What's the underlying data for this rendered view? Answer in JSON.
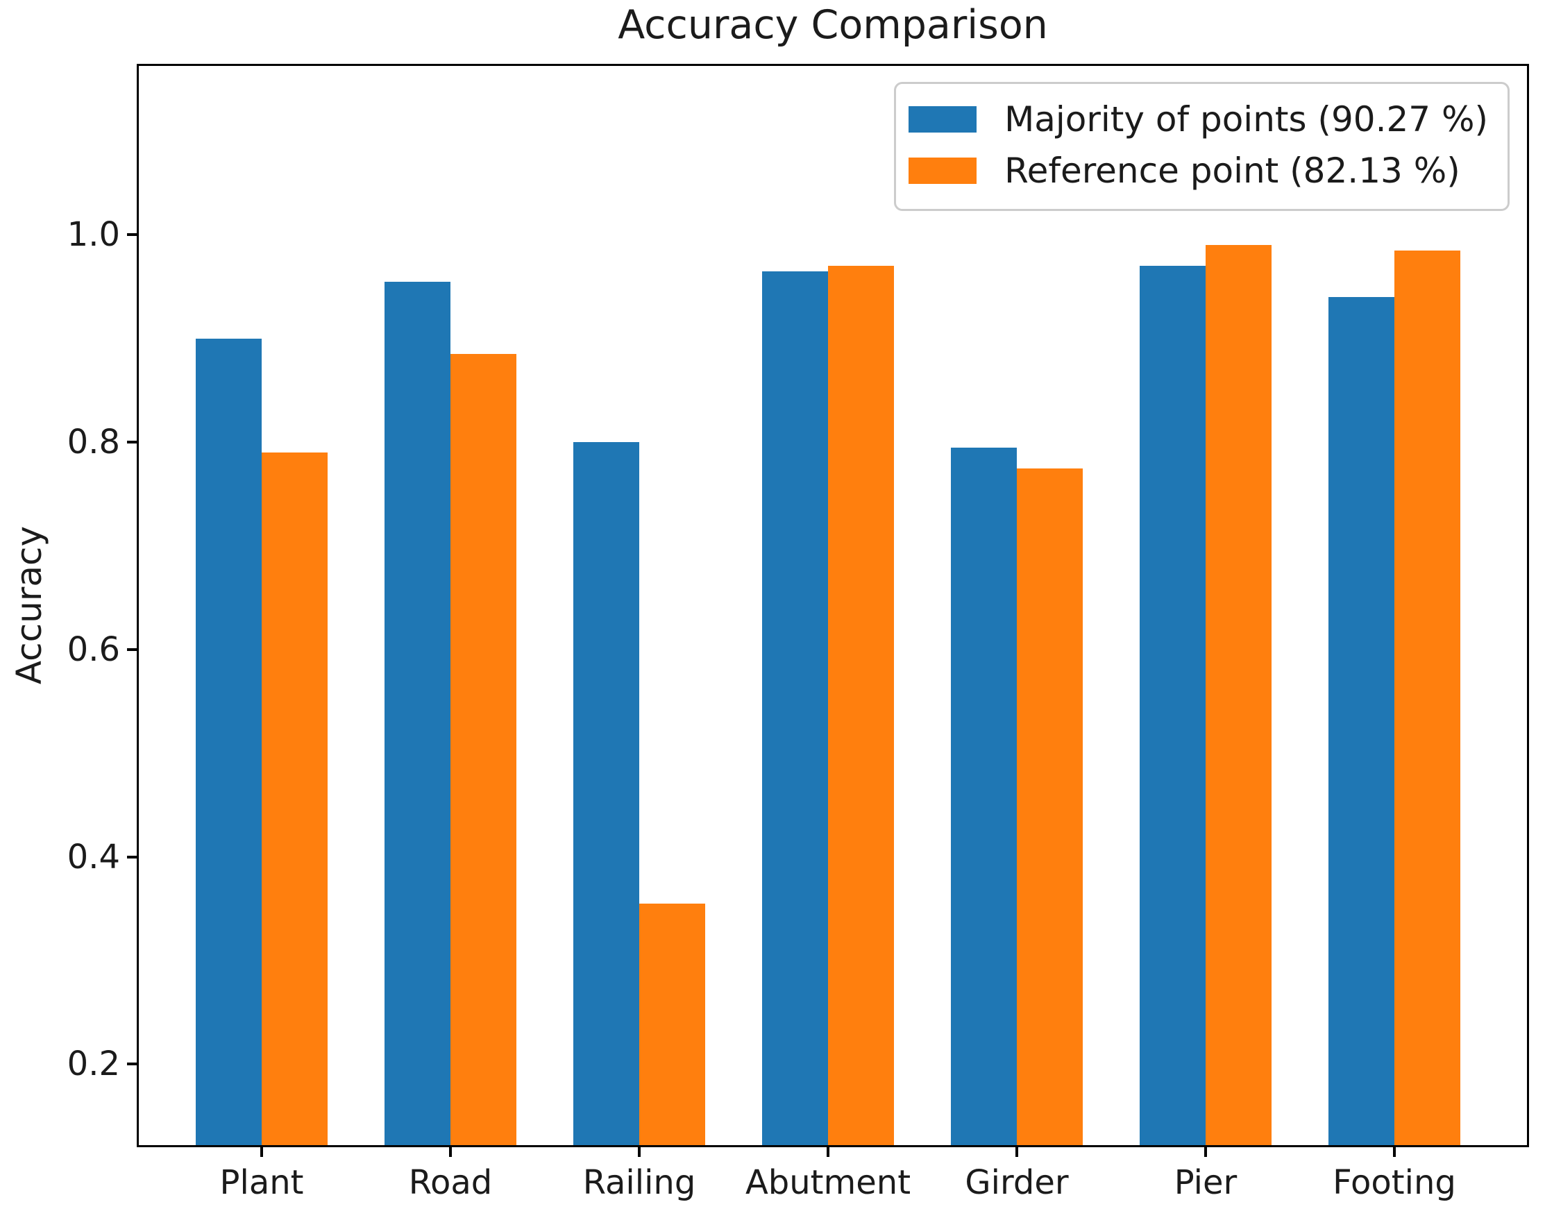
{
  "chart_data": {
    "type": "bar",
    "title": "Accuracy Comparison",
    "xlabel": "",
    "ylabel": "Accuracy",
    "categories": [
      "Plant",
      "Road",
      "Railing",
      "Abutment",
      "Girder",
      "Pier",
      "Footing"
    ],
    "series": [
      {
        "name": "Majority of points (90.27 %)",
        "color": "#1f77b4",
        "values": [
          0.9,
          0.955,
          0.8,
          0.965,
          0.795,
          0.97,
          0.94
        ]
      },
      {
        "name": "Reference point (82.13 %)",
        "color": "#ff7f0e",
        "values": [
          0.79,
          0.885,
          0.355,
          0.97,
          0.775,
          0.99,
          0.985
        ]
      }
    ],
    "yticks": [
      0.2,
      0.4,
      0.6,
      0.8,
      1.0
    ],
    "ytick_labels": [
      "0.2",
      "0.4",
      "0.6",
      "0.8",
      "1.0"
    ],
    "ylim": [
      0.122,
      1.163
    ],
    "bar_base": 0,
    "grid": false,
    "legend_position": "upper right",
    "axis_color": "#000000",
    "background_color": "#ffffff"
  }
}
